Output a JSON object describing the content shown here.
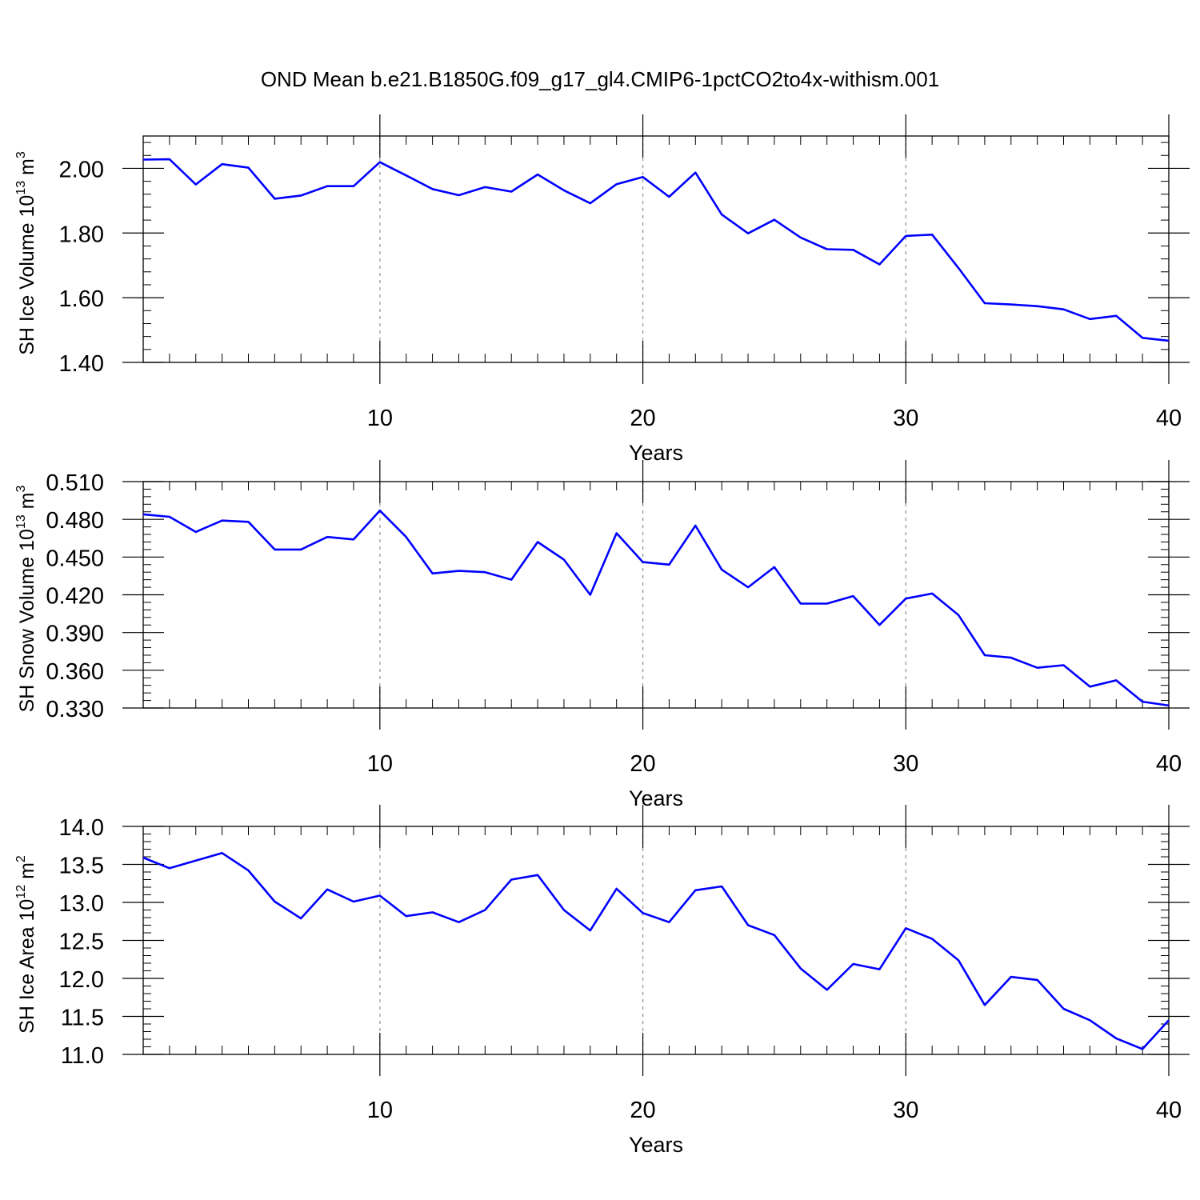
{
  "title": "OND Mean b.e21.B1850G.f09_g17_gl4.CMIP6-1pctCO2to4x-withism.001",
  "chart_data": [
    {
      "type": "line",
      "title": "OND Mean b.e21.B1850G.f09_g17_gl4.CMIP6-1pctCO2to4x-withism.001",
      "xlabel": "Years",
      "ylabel": {
        "text": "SH Ice Volume 10",
        "exp": "13",
        "unit": " m",
        "unit_exp": "3"
      },
      "xlim": [
        1,
        40
      ],
      "ylim": [
        1.4,
        2.1
      ],
      "x_major_ticks": [
        10,
        20,
        30,
        40
      ],
      "y_major_ticks": [
        1.4,
        1.6,
        1.8,
        2.0
      ],
      "y_tick_labels": [
        "1.40",
        "1.60",
        "1.80",
        "2.00"
      ],
      "y_minor_step": 0.04,
      "grid_x": [
        10,
        20,
        30
      ],
      "line_color": "#0000ff",
      "x": [
        1,
        2,
        3,
        4,
        5,
        6,
        7,
        8,
        9,
        10,
        11,
        12,
        13,
        14,
        15,
        16,
        17,
        18,
        19,
        20,
        21,
        22,
        23,
        24,
        25,
        26,
        27,
        28,
        29,
        30,
        31,
        32,
        33,
        34,
        35,
        36,
        37,
        38,
        39,
        40
      ],
      "values": [
        2.027,
        2.028,
        1.95,
        2.013,
        2.002,
        1.906,
        1.916,
        1.945,
        1.945,
        2.019,
        1.978,
        1.936,
        1.917,
        1.942,
        1.928,
        1.981,
        1.932,
        1.892,
        1.951,
        1.973,
        1.912,
        1.987,
        1.857,
        1.799,
        1.841,
        1.786,
        1.75,
        1.748,
        1.703,
        1.791,
        1.795,
        1.692,
        1.583,
        1.579,
        1.574,
        1.564,
        1.534,
        1.544,
        1.476,
        1.467
      ]
    },
    {
      "type": "line",
      "xlabel": "Years",
      "ylabel": {
        "text": "SH Snow Volume 10",
        "exp": "13",
        "unit": " m",
        "unit_exp": "3"
      },
      "xlim": [
        1,
        40
      ],
      "ylim": [
        0.33,
        0.51
      ],
      "x_major_ticks": [
        10,
        20,
        30,
        40
      ],
      "y_major_ticks": [
        0.33,
        0.36,
        0.39,
        0.42,
        0.45,
        0.48,
        0.51
      ],
      "y_tick_labels": [
        "0.330",
        "0.360",
        "0.390",
        "0.420",
        "0.450",
        "0.480",
        "0.510"
      ],
      "y_minor_step": 0.006,
      "grid_x": [
        10,
        20,
        30
      ],
      "line_color": "#0000ff",
      "x": [
        1,
        2,
        3,
        4,
        5,
        6,
        7,
        8,
        9,
        10,
        11,
        12,
        13,
        14,
        15,
        16,
        17,
        18,
        19,
        20,
        21,
        22,
        23,
        24,
        25,
        26,
        27,
        28,
        29,
        30,
        31,
        32,
        33,
        34,
        35,
        36,
        37,
        38,
        39,
        40
      ],
      "values": [
        0.484,
        0.482,
        0.47,
        0.479,
        0.478,
        0.456,
        0.456,
        0.466,
        0.464,
        0.487,
        0.466,
        0.437,
        0.439,
        0.438,
        0.432,
        0.462,
        0.448,
        0.42,
        0.469,
        0.446,
        0.444,
        0.475,
        0.44,
        0.426,
        0.442,
        0.413,
        0.413,
        0.419,
        0.396,
        0.417,
        0.421,
        0.404,
        0.372,
        0.37,
        0.362,
        0.364,
        0.347,
        0.352,
        0.335,
        0.332
      ]
    },
    {
      "type": "line",
      "xlabel": "Years",
      "ylabel": {
        "text": "SH Ice Area 10",
        "exp": "12",
        "unit": " m",
        "unit_exp": "2"
      },
      "xlim": [
        1,
        40
      ],
      "ylim": [
        11.0,
        14.0
      ],
      "x_major_ticks": [
        10,
        20,
        30,
        40
      ],
      "y_major_ticks": [
        11.0,
        11.5,
        12.0,
        12.5,
        13.0,
        13.5,
        14.0
      ],
      "y_tick_labels": [
        "11.0",
        "11.5",
        "12.0",
        "12.5",
        "13.0",
        "13.5",
        "14.0"
      ],
      "y_minor_step": 0.1,
      "grid_x": [
        10,
        20,
        30
      ],
      "line_color": "#0000ff",
      "x": [
        1,
        2,
        3,
        4,
        5,
        6,
        7,
        8,
        9,
        10,
        11,
        12,
        13,
        14,
        15,
        16,
        17,
        18,
        19,
        20,
        21,
        22,
        23,
        24,
        25,
        26,
        27,
        28,
        29,
        30,
        31,
        32,
        33,
        34,
        35,
        36,
        37,
        38,
        39,
        40
      ],
      "values": [
        13.59,
        13.45,
        13.55,
        13.65,
        13.42,
        13.01,
        12.79,
        13.17,
        13.01,
        13.09,
        12.82,
        12.87,
        12.74,
        12.9,
        13.3,
        13.36,
        12.9,
        12.63,
        13.18,
        12.86,
        12.74,
        13.16,
        13.21,
        12.7,
        12.57,
        12.13,
        11.85,
        12.19,
        12.12,
        12.66,
        12.52,
        12.24,
        11.65,
        12.02,
        11.98,
        11.6,
        11.45,
        11.21,
        11.07,
        11.45
      ]
    }
  ]
}
